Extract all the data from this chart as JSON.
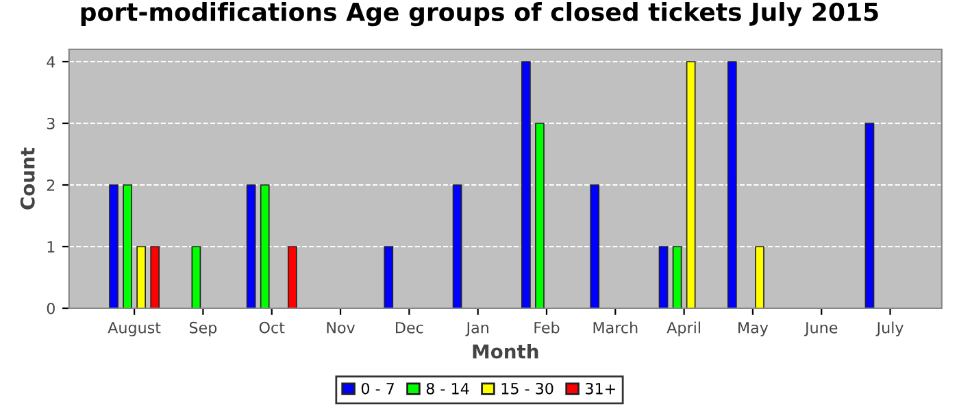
{
  "chart_data": {
    "type": "bar",
    "title": "port-modifications Age groups of closed tickets July 2015",
    "xlabel": "Month",
    "ylabel": "Count",
    "categories": [
      "August",
      "Sep",
      "Oct",
      "Nov",
      "Dec",
      "Jan",
      "Feb",
      "March",
      "April",
      "May",
      "June",
      "July"
    ],
    "series": [
      {
        "name": "0 - 7",
        "color": "#0000ff",
        "values": [
          2,
          0,
          2,
          0,
          1,
          2,
          4,
          2,
          1,
          4,
          0,
          3
        ]
      },
      {
        "name": "8 - 14",
        "color": "#00ff00",
        "values": [
          2,
          1,
          2,
          0,
          0,
          0,
          3,
          0,
          1,
          0,
          0,
          0
        ]
      },
      {
        "name": "15 - 30",
        "color": "#ffff00",
        "values": [
          1,
          0,
          0,
          0,
          0,
          0,
          0,
          0,
          4,
          1,
          0,
          0
        ]
      },
      {
        "name": "31+",
        "color": "#ff0000",
        "values": [
          1,
          0,
          1,
          0,
          0,
          0,
          0,
          0,
          0,
          0,
          0,
          0
        ]
      }
    ],
    "ylim": [
      0,
      4.2
    ],
    "yticks": [
      0,
      1,
      2,
      3,
      4
    ],
    "grid": "y",
    "legend": "bottom"
  }
}
